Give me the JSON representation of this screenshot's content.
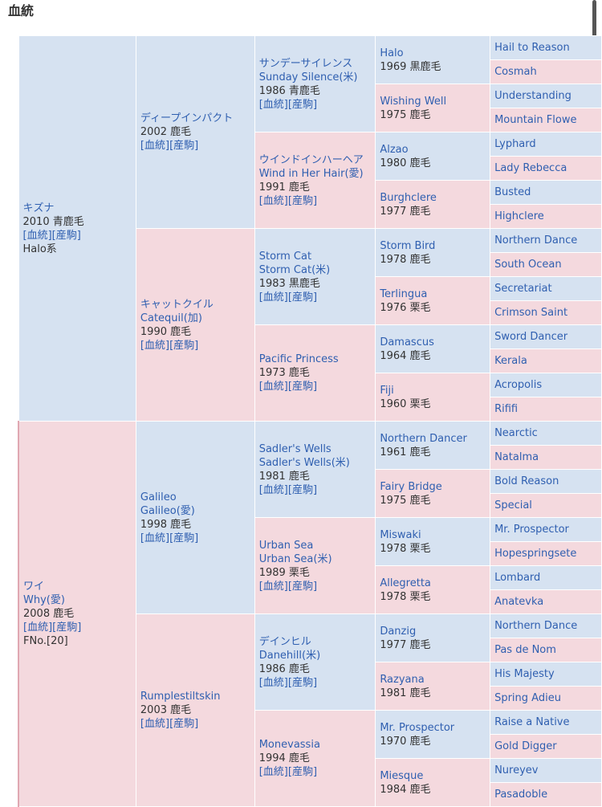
{
  "section_title": "血統",
  "links": {
    "pedigree": "[血統]",
    "offspring": "[産駒]"
  },
  "subject_sire": {
    "name": "キズナ",
    "year_color": "2010 青鹿毛",
    "line": "Halo系"
  },
  "subject_dam": {
    "name": "ワイ",
    "alt": "Why(愛)",
    "year_color": "2008 鹿毛",
    "family": "FNo.[20]"
  },
  "gen2": {
    "ss": {
      "name": "ディープインパクト",
      "year_color": "2002 鹿毛"
    },
    "sd": {
      "name": "キャットクイル",
      "alt": "Catequil(加)",
      "year_color": "1990 鹿毛"
    },
    "ds": {
      "name": "Galileo",
      "alt": "Galileo(愛)",
      "year_color": "1998 鹿毛"
    },
    "dd": {
      "name": "Rumplestiltskin",
      "year_color": "2003 鹿毛"
    }
  },
  "gen3": [
    {
      "name": "サンデーサイレンス",
      "alt": "Sunday Silence(米)",
      "year_color": "1986 青鹿毛"
    },
    {
      "name": "ウインドインハーヘア",
      "alt": "Wind in Her Hair(愛)",
      "year_color": "1991 鹿毛"
    },
    {
      "name": "Storm Cat",
      "alt": "Storm Cat(米)",
      "year_color": "1983 黒鹿毛"
    },
    {
      "name": "Pacific Princess",
      "alt": "",
      "year_color": "1973 鹿毛"
    },
    {
      "name": "Sadler's Wells",
      "alt": "Sadler's Wells(米)",
      "year_color": "1981 鹿毛"
    },
    {
      "name": "Urban Sea",
      "alt": "Urban Sea(米)",
      "year_color": "1989 栗毛"
    },
    {
      "name": "デインヒル",
      "alt": "Danehill(米)",
      "year_color": "1986 鹿毛"
    },
    {
      "name": "Monevassia",
      "alt": "",
      "year_color": "1994 鹿毛"
    }
  ],
  "gen4": [
    {
      "name": "Halo",
      "year_color": "1969 黒鹿毛"
    },
    {
      "name": "Wishing Well",
      "year_color": "1975 鹿毛"
    },
    {
      "name": "Alzao",
      "year_color": "1980 鹿毛"
    },
    {
      "name": "Burghclere",
      "year_color": "1977 鹿毛"
    },
    {
      "name": "Storm Bird",
      "year_color": "1978 鹿毛"
    },
    {
      "name": "Terlingua",
      "year_color": "1976 栗毛"
    },
    {
      "name": "Damascus",
      "year_color": "1964 鹿毛"
    },
    {
      "name": "Fiji",
      "year_color": "1960 栗毛"
    },
    {
      "name": "Northern Dancer",
      "year_color": "1961 鹿毛"
    },
    {
      "name": "Fairy Bridge",
      "year_color": "1975 鹿毛"
    },
    {
      "name": "Miswaki",
      "year_color": "1978 栗毛"
    },
    {
      "name": "Allegretta",
      "year_color": "1978 栗毛"
    },
    {
      "name": "Danzig",
      "year_color": "1977 鹿毛"
    },
    {
      "name": "Razyana",
      "year_color": "1981 鹿毛"
    },
    {
      "name": "Mr. Prospector",
      "year_color": "1970 鹿毛"
    },
    {
      "name": "Miesque",
      "year_color": "1984 鹿毛"
    }
  ],
  "gen5": [
    "Hail to Reason",
    "Cosmah",
    "Understanding",
    "Mountain Flowe",
    "Lyphard",
    "Lady Rebecca",
    "Busted",
    "Highclere",
    "Northern Dance",
    "South Ocean",
    "Secretariat",
    "Crimson Saint",
    "Sword Dancer",
    "Kerala",
    "Acropolis",
    "Rififi",
    "Nearctic",
    "Natalma",
    "Bold Reason",
    "Special",
    "Mr. Prospector",
    "Hopespringsete",
    "Lombard",
    "Anatevka",
    "Northern Dance",
    "Pas de Nom",
    "His Majesty",
    "Spring Adieu",
    "Raise a Native",
    "Gold Digger",
    "Nureyev",
    "Pasadoble"
  ]
}
